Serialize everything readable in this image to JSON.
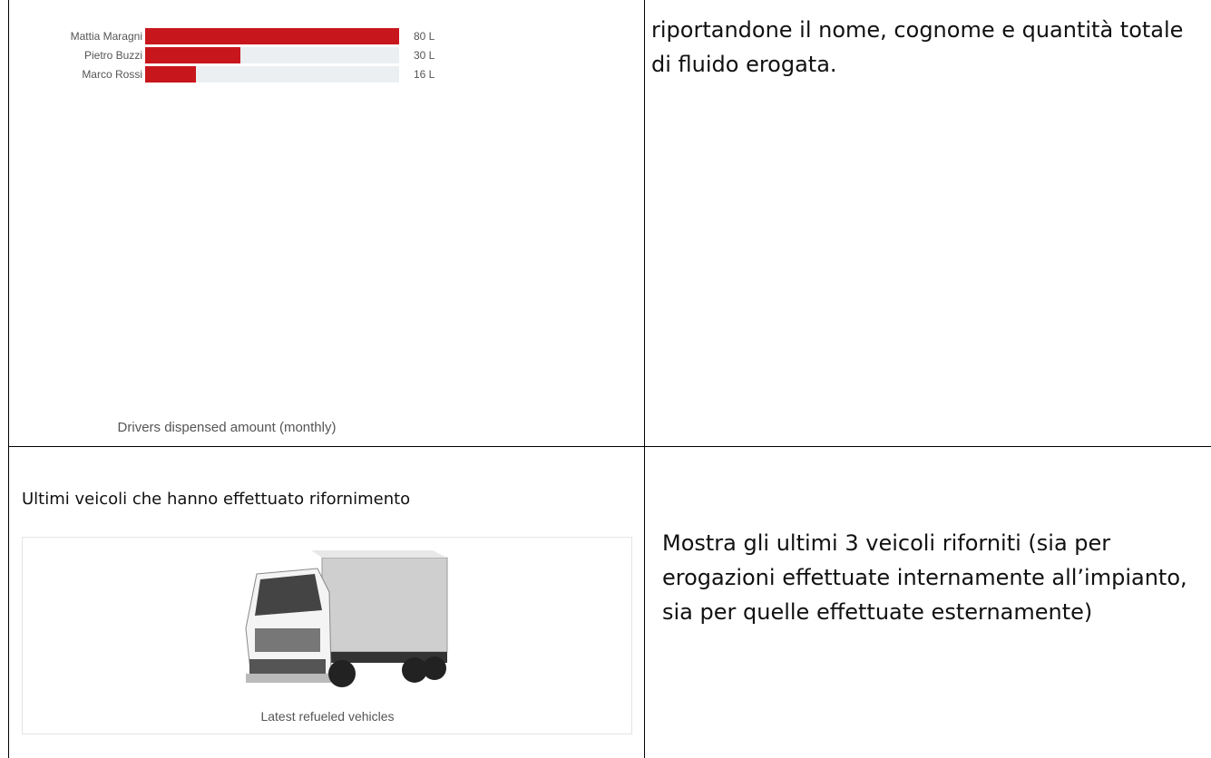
{
  "rows": [
    {
      "left": {
        "chart": {
          "type": "bar",
          "orientation": "horizontal",
          "title": "Drivers dispensed amount (monthly)",
          "categories": [
            "Mattia Maragni",
            "Pietro Buzzi",
            "Marco Rossi"
          ],
          "values": [
            80,
            30,
            16
          ],
          "value_labels": [
            "80 L",
            "30 L",
            "16 L"
          ],
          "color": "#c8161d",
          "track_color": "#eceff1",
          "xlim": [
            0,
            80
          ]
        }
      },
      "right": "riportandone il nome, cognome e quantità totale di fluido erogata."
    },
    {
      "left": {
        "heading": "Ultimi veicoli che hanno effettuato rifornimento",
        "image_caption": "Latest refueled vehicles"
      },
      "right": "Mostra gli ultimi 3 veicoli riforniti (sia per erogazioni effettuate internamente all’impianto, sia per quelle effettuate esternamente)"
    }
  ]
}
